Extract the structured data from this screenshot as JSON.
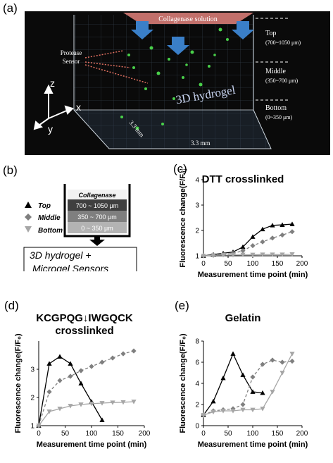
{
  "panel_labels": {
    "a": "(a)",
    "b": "(b)",
    "c": "(c)",
    "d": "(d)",
    "e": "(e)"
  },
  "panel_a": {
    "collagenase": "Collagenase solution",
    "protease_line1": "Protease",
    "protease_line2": "Sensor",
    "hydrogel": "3D hydrogel",
    "axis_z": "z",
    "axis_x": "x",
    "axis_y": "y",
    "dim_left": "3.3 mm",
    "dim_right": "3.3 mm",
    "zones": [
      {
        "name": "Top",
        "range": "(700~1050 μm)"
      },
      {
        "name": "Middle",
        "range": "(350~700 μm)"
      },
      {
        "name": "Bottom",
        "range": "(0~350 μm)"
      }
    ]
  },
  "panel_b": {
    "legend": [
      {
        "name": "Top",
        "marker": "triangle-up",
        "color": "#000000"
      },
      {
        "name": "Middle",
        "marker": "diamond",
        "color": "#7f7f7f"
      },
      {
        "name": "Bottom",
        "marker": "triangle-down",
        "color": "#a6a6a6"
      }
    ],
    "layers": [
      "Collagenase",
      "700 ~ 1050 μm",
      "350 ~ 700 μm",
      "0 ~ 350 μm"
    ],
    "box_line1": "3D hydrogel +",
    "box_line2": "Microgel Sensors"
  },
  "chart_data": [
    {
      "id": "c",
      "type": "line",
      "title": "DTT crosslinked",
      "title_line2": "",
      "xlabel": "Measurement time point (min)",
      "ylabel": "Fluorescence change(F/F₀)",
      "xlim": [
        0,
        200
      ],
      "ylim": [
        1,
        4
      ],
      "xticks": [
        0,
        50,
        100,
        150,
        200
      ],
      "yticks": [
        1,
        2,
        3,
        4
      ],
      "series": [
        {
          "name": "Top",
          "marker": "triangle-up",
          "color": "#000000",
          "dash": "",
          "x": [
            0,
            20,
            40,
            60,
            80,
            100,
            120,
            140,
            160,
            180
          ],
          "y": [
            1.0,
            1.05,
            1.1,
            1.15,
            1.35,
            1.75,
            2.05,
            2.2,
            2.22,
            2.25
          ]
        },
        {
          "name": "Middle",
          "marker": "diamond",
          "color": "#7f7f7f",
          "dash": "4,3",
          "x": [
            0,
            20,
            40,
            60,
            80,
            100,
            120,
            140,
            160,
            180
          ],
          "y": [
            1.0,
            1.02,
            1.05,
            1.1,
            1.2,
            1.4,
            1.55,
            1.7,
            1.82,
            1.95
          ]
        },
        {
          "name": "Bottom",
          "marker": "triangle-down",
          "color": "#a6a6a6",
          "dash": "",
          "x": [
            0,
            20,
            40,
            60,
            80,
            100,
            120,
            140,
            160,
            180
          ],
          "y": [
            1.0,
            1.02,
            1.03,
            1.03,
            1.04,
            1.04,
            1.05,
            1.05,
            1.05,
            1.06
          ]
        }
      ]
    },
    {
      "id": "d",
      "type": "line",
      "title": "KCGPQG↓IWGQCK",
      "title_line2": "crosslinked",
      "xlabel": "Measurement time point (min)",
      "ylabel": "Fluorescence change(F/F₀)",
      "xlim": [
        0,
        200
      ],
      "ylim": [
        1,
        4
      ],
      "xticks": [
        0,
        50,
        100,
        150,
        200
      ],
      "yticks": [
        1,
        2,
        3
      ],
      "series": [
        {
          "name": "Top",
          "marker": "triangle-up",
          "color": "#000000",
          "dash": "",
          "x": [
            0,
            20,
            40,
            60,
            80,
            100,
            120
          ],
          "y": [
            1.0,
            3.2,
            3.45,
            3.2,
            2.5,
            1.85,
            1.2
          ]
        },
        {
          "name": "Middle",
          "marker": "diamond",
          "color": "#7f7f7f",
          "dash": "4,3",
          "x": [
            0,
            20,
            40,
            60,
            80,
            100,
            120,
            140,
            160,
            180
          ],
          "y": [
            1.0,
            2.2,
            2.6,
            2.75,
            2.95,
            3.1,
            3.25,
            3.4,
            3.55,
            3.65
          ]
        },
        {
          "name": "Bottom",
          "marker": "triangle-down",
          "color": "#a6a6a6",
          "dash": "",
          "x": [
            0,
            20,
            40,
            60,
            80,
            100,
            120,
            140,
            160,
            180
          ],
          "y": [
            1.0,
            1.5,
            1.6,
            1.7,
            1.75,
            1.78,
            1.8,
            1.82,
            1.83,
            1.85
          ]
        }
      ]
    },
    {
      "id": "e",
      "type": "line",
      "title": "Gelatin",
      "title_line2": "",
      "xlabel": "Measurement time point (min)",
      "ylabel": "Fluorescence change(F/F₀)",
      "xlim": [
        0,
        200
      ],
      "ylim": [
        0,
        8
      ],
      "xticks": [
        0,
        50,
        100,
        150,
        200
      ],
      "yticks": [
        0,
        2,
        4,
        6,
        8
      ],
      "series": [
        {
          "name": "Top",
          "marker": "triangle-up",
          "color": "#000000",
          "dash": "",
          "x": [
            0,
            20,
            40,
            60,
            80,
            100,
            120
          ],
          "y": [
            1.0,
            2.3,
            4.5,
            6.8,
            4.8,
            3.2,
            3.1
          ]
        },
        {
          "name": "Middle",
          "marker": "diamond",
          "color": "#7f7f7f",
          "dash": "4,3",
          "x": [
            0,
            20,
            40,
            60,
            80,
            100,
            120,
            140,
            160,
            180
          ],
          "y": [
            1.0,
            1.4,
            1.5,
            1.6,
            2.0,
            4.6,
            5.8,
            6.2,
            6.0,
            6.1
          ]
        },
        {
          "name": "Bottom",
          "marker": "triangle-down",
          "color": "#a6a6a6",
          "dash": "",
          "x": [
            0,
            20,
            40,
            60,
            80,
            100,
            120,
            140,
            160,
            180
          ],
          "y": [
            1.0,
            1.3,
            1.4,
            1.4,
            1.5,
            1.5,
            1.6,
            3.2,
            5.0,
            6.8
          ]
        }
      ]
    }
  ]
}
